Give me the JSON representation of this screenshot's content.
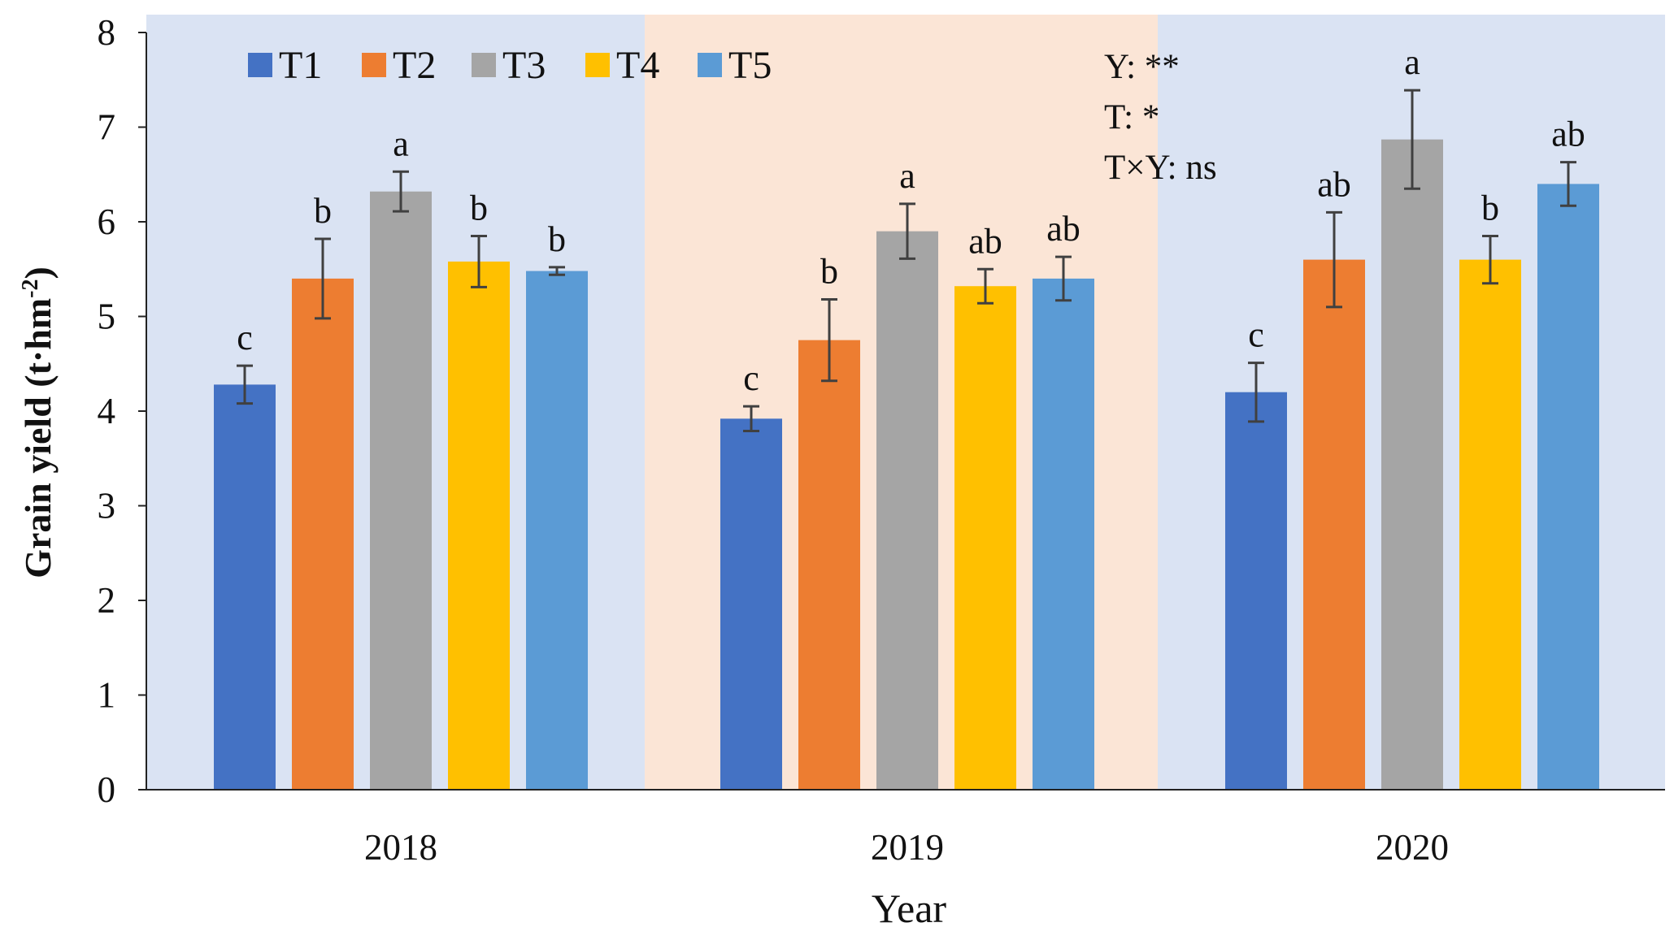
{
  "chart_data": {
    "type": "bar",
    "title": "",
    "xlabel": "Year",
    "ylabel": "Grain yield (t·hm",
    "ylabel_sup": "-2",
    "ylabel_close": ")",
    "ylim": [
      0,
      8
    ],
    "yticks": [
      0,
      1,
      2,
      3,
      4,
      5,
      6,
      7,
      8
    ],
    "categories": [
      "2018",
      "2019",
      "2020"
    ],
    "background_colors": [
      "#dae3f3",
      "#fbe5d6",
      "#dae3f3"
    ],
    "legend_position": "top-left",
    "series": [
      {
        "name": "T1",
        "color": "#4472c4",
        "values": [
          4.28,
          3.92,
          4.2
        ],
        "errors": [
          0.2,
          0.13,
          0.31
        ],
        "letters": [
          "c",
          "c",
          "c"
        ]
      },
      {
        "name": "T2",
        "color": "#ed7d31",
        "values": [
          5.4,
          4.75,
          5.6
        ],
        "errors": [
          0.42,
          0.43,
          0.5
        ],
        "letters": [
          "b",
          "b",
          "ab"
        ]
      },
      {
        "name": "T3",
        "color": "#a5a5a5",
        "values": [
          6.32,
          5.9,
          6.87
        ],
        "errors": [
          0.21,
          0.29,
          0.52
        ],
        "letters": [
          "a",
          "a",
          "a"
        ]
      },
      {
        "name": "T4",
        "color": "#ffc000",
        "values": [
          5.58,
          5.32,
          5.6
        ],
        "errors": [
          0.27,
          0.18,
          0.25
        ],
        "letters": [
          "b",
          "ab",
          "b"
        ]
      },
      {
        "name": "T5",
        "color": "#5b9bd5",
        "values": [
          5.48,
          5.4,
          6.4
        ],
        "errors": [
          0.04,
          0.23,
          0.23
        ],
        "letters": [
          "b",
          "ab",
          "ab"
        ]
      }
    ],
    "annotations": [
      "Y: **",
      "T: *",
      "T×Y: ns"
    ]
  }
}
